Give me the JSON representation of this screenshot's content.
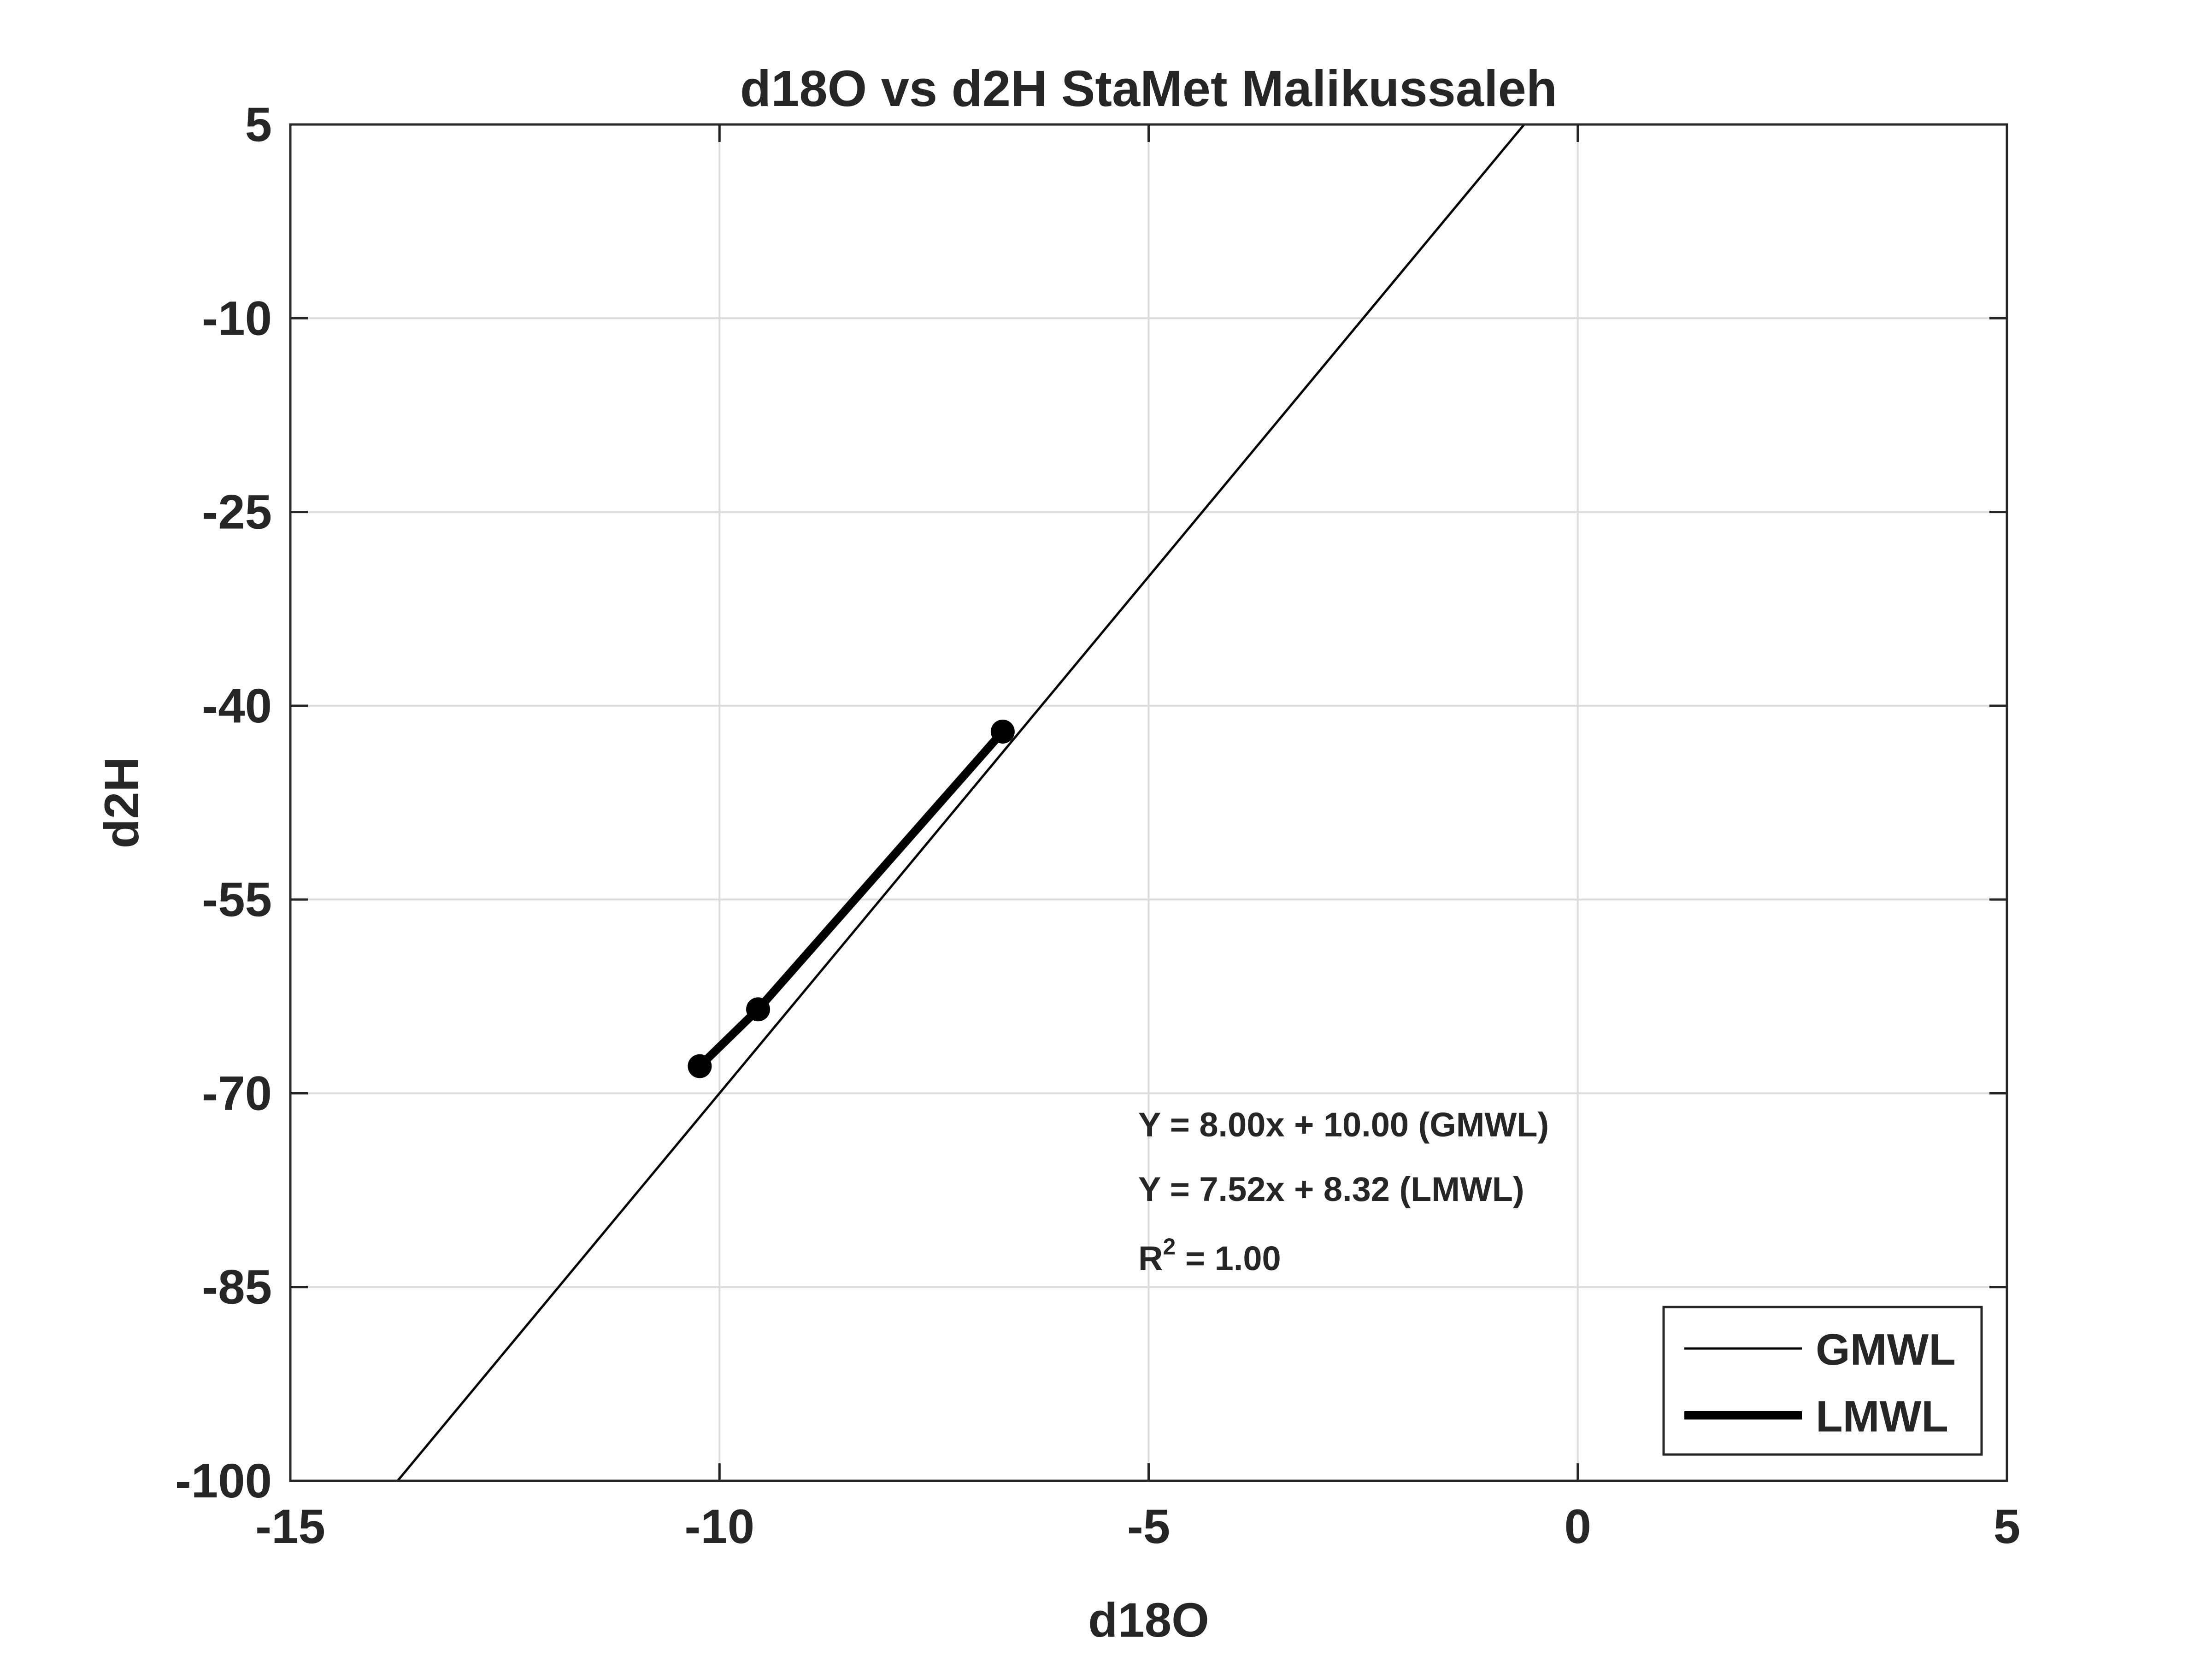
{
  "chart_data": {
    "type": "line",
    "title": "d18O vs d2H StaMet Malikussaleh",
    "xlabel": "d18O",
    "ylabel": "d2H",
    "xlim": [
      -15,
      5
    ],
    "ylim": [
      -100,
      5
    ],
    "xticks": [
      -15,
      -10,
      -5,
      0,
      5
    ],
    "yticks": [
      5,
      -10,
      -25,
      -40,
      -55,
      -70,
      -85,
      -100
    ],
    "xtick_labels": [
      "-15",
      "-10",
      "-5",
      "0",
      "5"
    ],
    "ytick_labels": [
      "5",
      "-10",
      "-25",
      "-40",
      "-55",
      "-70",
      "-85",
      "-100"
    ],
    "grid": true,
    "legend_position": "bottom-right",
    "series": [
      {
        "name": "GMWL",
        "slope": 8.0,
        "intercept": 10.0,
        "style": "thin-line",
        "color": "#000000"
      },
      {
        "name": "LMWL",
        "style": "thick-line-markers",
        "color": "#000000",
        "x": [
          -10.23,
          -9.55,
          -6.7
        ],
        "y": [
          -67.9,
          -63.5,
          -42.0
        ]
      }
    ],
    "annotations": [
      {
        "text": "Y = 8.00x + 10.00 (GMWL)"
      },
      {
        "text": "Y = 7.52x + 8.32 (LMWL)"
      },
      {
        "text": "R",
        "superscript": "2",
        "suffix": " = 1.00"
      }
    ]
  }
}
